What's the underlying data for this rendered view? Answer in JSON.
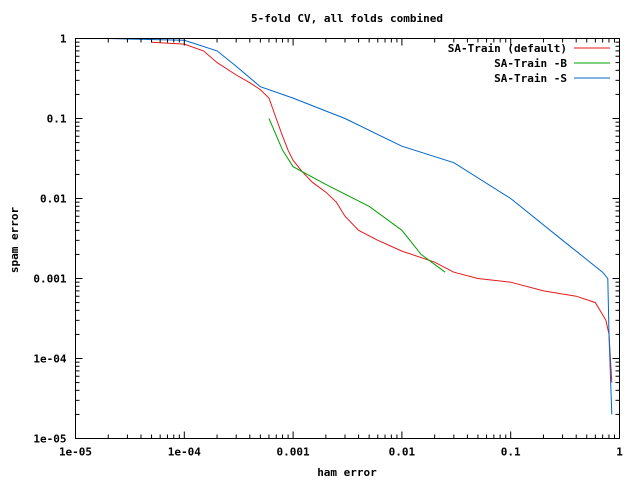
{
  "chart_data": {
    "type": "line",
    "title": "5-fold CV, all folds combined",
    "xlabel": "ham error",
    "ylabel": "spam error",
    "xscale": "log",
    "yscale": "log",
    "xlim": [
      1e-05,
      1
    ],
    "ylim": [
      1e-05,
      1
    ],
    "xticks": [
      {
        "value": 1e-05,
        "label": "1e-05"
      },
      {
        "value": 0.0001,
        "label": "1e-04"
      },
      {
        "value": 0.001,
        "label": "0.001"
      },
      {
        "value": 0.01,
        "label": "0.01"
      },
      {
        "value": 0.1,
        "label": "0.1"
      },
      {
        "value": 1,
        "label": "1"
      }
    ],
    "yticks": [
      {
        "value": 1e-05,
        "label": "1e-05"
      },
      {
        "value": 0.0001,
        "label": "1e-04"
      },
      {
        "value": 0.001,
        "label": "0.001"
      },
      {
        "value": 0.01,
        "label": "0.01"
      },
      {
        "value": 0.1,
        "label": "0.1"
      },
      {
        "value": 1,
        "label": "1"
      }
    ],
    "legend_position": "top-right",
    "grid": false,
    "series": [
      {
        "name": "SA-Train (default)",
        "color": "#e41a1c",
        "points": [
          [
            5e-05,
            0.9
          ],
          [
            0.0001,
            0.85
          ],
          [
            0.00015,
            0.7
          ],
          [
            0.0002,
            0.5
          ],
          [
            0.0003,
            0.35
          ],
          [
            0.0004,
            0.28
          ],
          [
            0.0005,
            0.23
          ],
          [
            0.0006,
            0.18
          ],
          [
            0.0007,
            0.1
          ],
          [
            0.0008,
            0.06
          ],
          [
            0.0009,
            0.04
          ],
          [
            0.001,
            0.03
          ],
          [
            0.0012,
            0.022
          ],
          [
            0.0015,
            0.016
          ],
          [
            0.002,
            0.012
          ],
          [
            0.0025,
            0.009
          ],
          [
            0.003,
            0.006
          ],
          [
            0.004,
            0.004
          ],
          [
            0.006,
            0.003
          ],
          [
            0.01,
            0.0022
          ],
          [
            0.02,
            0.0016
          ],
          [
            0.03,
            0.0012
          ],
          [
            0.05,
            0.001
          ],
          [
            0.1,
            0.0009
          ],
          [
            0.2,
            0.0007
          ],
          [
            0.4,
            0.0006
          ],
          [
            0.6,
            0.0005
          ],
          [
            0.75,
            0.0003
          ],
          [
            0.8,
            0.0002
          ],
          [
            0.85,
            5e-05
          ]
        ]
      },
      {
        "name": "SA-Train -B",
        "color": "#00a000",
        "points": [
          [
            0.0006,
            0.1
          ],
          [
            0.0008,
            0.04
          ],
          [
            0.001,
            0.025
          ],
          [
            0.002,
            0.015
          ],
          [
            0.005,
            0.008
          ],
          [
            0.01,
            0.004
          ],
          [
            0.015,
            0.002
          ],
          [
            0.025,
            0.0012
          ]
        ]
      },
      {
        "name": "SA-Train -S",
        "color": "#0066cc",
        "points": [
          [
            2e-05,
            1.0
          ],
          [
            0.0001,
            0.95
          ],
          [
            0.0002,
            0.7
          ],
          [
            0.0003,
            0.45
          ],
          [
            0.0005,
            0.25
          ],
          [
            0.001,
            0.18
          ],
          [
            0.003,
            0.1
          ],
          [
            0.01,
            0.045
          ],
          [
            0.03,
            0.028
          ],
          [
            0.1,
            0.01
          ],
          [
            0.3,
            0.003
          ],
          [
            0.7,
            0.0012
          ],
          [
            0.78,
            0.001
          ],
          [
            0.8,
            0.0002
          ],
          [
            0.85,
            2e-05
          ]
        ]
      }
    ]
  }
}
